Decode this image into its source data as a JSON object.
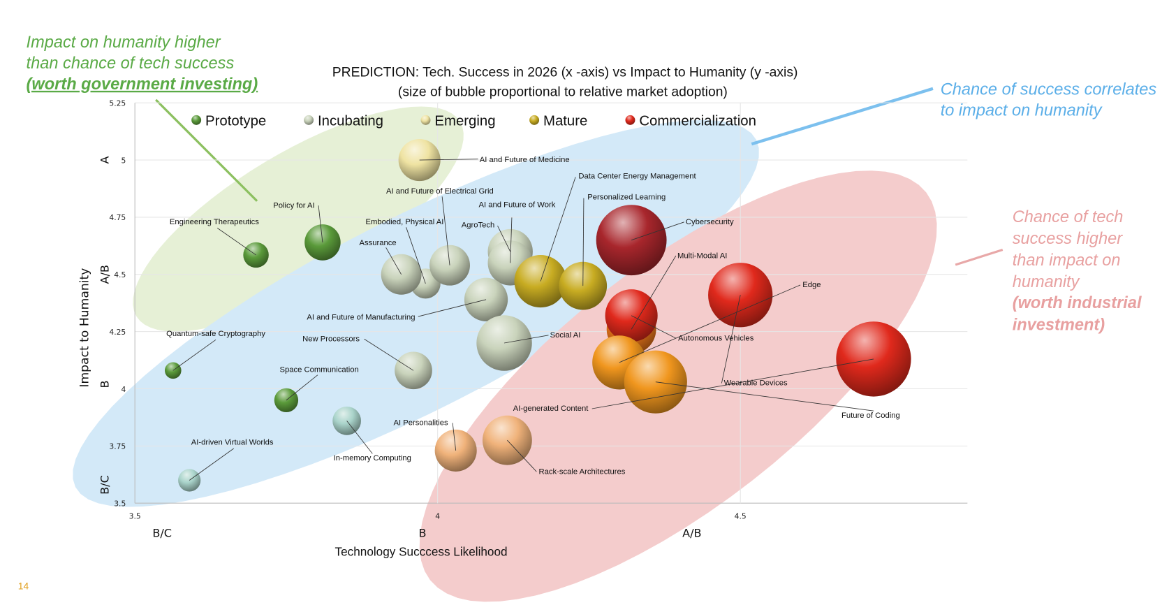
{
  "page_number": "14",
  "annotations": {
    "government": [
      "Impact on humanity higher",
      "than chance of tech success",
      "(worth government investing)"
    ],
    "correlates": [
      "Chance of success correlates",
      "to impact on humanity"
    ],
    "industrial": [
      "Chance of tech",
      "success higher",
      "than impact on",
      "humanity",
      "(worth industrial",
      "investment)"
    ]
  },
  "colors": {
    "government": "#5aaa46",
    "correlates": "#5aaee8",
    "industrial": "#e8a0a0",
    "ellipse_green": "#e6f0d6",
    "ellipse_blue": "#d3e9f8",
    "ellipse_pink": "#f4cccc"
  },
  "chart_data": {
    "type": "bubble",
    "title": "PREDICTION: Tech. Success in 2026 (x -axis) vs Impact to Humanity (y -axis)",
    "subtitle": "(size of bubble proportional to relative market adoption)",
    "xlabel": "Technology  Succcess Likelihood",
    "ylabel": "Impact to Humanity",
    "xlim": [
      3.5,
      4.875
    ],
    "ylim": [
      3.5,
      5.25
    ],
    "x_ticks": [
      "3.5",
      "4",
      "4.5"
    ],
    "y_ticks": [
      "3.5",
      "3.75",
      "4",
      "4.25",
      "4.5",
      "4.75",
      "5",
      "5.25"
    ],
    "x_grades": [
      "B/C",
      "B",
      "A/B"
    ],
    "y_grades": [
      "B/C",
      "B",
      "A/B",
      "A"
    ],
    "grid": true,
    "legend_position": "top",
    "legend": [
      {
        "name": "Prototype",
        "color": "#5a9a3a"
      },
      {
        "name": "Incubating",
        "color": "#c9d3bb"
      },
      {
        "name": "Emerging",
        "color": "#efe3a2"
      },
      {
        "name": "Mature",
        "color": "#c8ac22"
      },
      {
        "name": "Commercialization",
        "color": "#e0291c"
      }
    ],
    "points": [
      {
        "name": "AI and Future of Medicine",
        "x": 3.97,
        "y": 5.0,
        "size": 28,
        "color": "#efe3a2"
      },
      {
        "name": "Policy for AI",
        "x": 3.81,
        "y": 4.64,
        "size": 24,
        "color": "#5a9a3a"
      },
      {
        "name": "Engineering Therapeutics",
        "x": 3.7,
        "y": 4.585,
        "size": 17,
        "color": "#5a9a3a"
      },
      {
        "name": "Embodied, Physical AI",
        "x": 3.98,
        "y": 4.46,
        "size": 20,
        "color": "#c9d3bb"
      },
      {
        "name": "Assurance",
        "x": 3.94,
        "y": 4.5,
        "size": 27,
        "color": "#c9d3bb"
      },
      {
        "name": "AI and Future of Electrical  Grid",
        "x": 4.02,
        "y": 4.54,
        "size": 27,
        "color": "#c9d3bb"
      },
      {
        "name": "AgroTech",
        "x": 4.12,
        "y": 4.6,
        "size": 30,
        "color": "#c9d3bb"
      },
      {
        "name": "AI and Future of Work",
        "x": 4.12,
        "y": 4.55,
        "size": 30,
        "color": "#c9d3bb"
      },
      {
        "name": "Data Center Energy Management",
        "x": 4.17,
        "y": 4.47,
        "size": 35,
        "color": "#c8ac22"
      },
      {
        "name": "Personalized Learning",
        "x": 4.24,
        "y": 4.45,
        "size": 32,
        "color": "#c8ac22"
      },
      {
        "name": "Cybersecurity",
        "x": 4.32,
        "y": 4.65,
        "size": 47,
        "color": "#a8262c"
      },
      {
        "name": "AI and Future of Manufacturing",
        "x": 4.08,
        "y": 4.39,
        "size": 29,
        "color": "#c9d3bb"
      },
      {
        "name": "Social AI",
        "x": 4.11,
        "y": 4.2,
        "size": 37,
        "color": "#c9d3bb"
      },
      {
        "name": "Multi-Modal AI",
        "x": 4.32,
        "y": 4.26,
        "size": 33,
        "color": "#e8741a"
      },
      {
        "name": "Autonomous Vehicles",
        "x": 4.32,
        "y": 4.32,
        "size": 35,
        "color": "#e0291c"
      },
      {
        "name": "Edge",
        "x": 4.3,
        "y": 4.115,
        "size": 36,
        "color": "#f0961e"
      },
      {
        "name": "Future of Coding",
        "x": 4.36,
        "y": 4.03,
        "size": 42,
        "color": "#f0961e"
      },
      {
        "name": "Wearable Devices",
        "x": 4.5,
        "y": 4.41,
        "size": 43,
        "color": "#e0291c"
      },
      {
        "name": "AI-generated Content",
        "x": 4.72,
        "y": 4.13,
        "size": 50,
        "color": "#e0291c"
      },
      {
        "name": "Quantum-safe Cryptography",
        "x": 3.563,
        "y": 4.08,
        "size": 11,
        "color": "#5a9a3a"
      },
      {
        "name": "Space Communication",
        "x": 3.75,
        "y": 3.95,
        "size": 16,
        "color": "#5a9a3a"
      },
      {
        "name": "New Processors",
        "x": 3.96,
        "y": 4.08,
        "size": 25,
        "color": "#c9d3bb"
      },
      {
        "name": "In-memory Computing",
        "x": 3.85,
        "y": 3.86,
        "size": 19,
        "color": "#a9d3ca"
      },
      {
        "name": "AI-driven Virtual Worlds",
        "x": 3.59,
        "y": 3.6,
        "size": 15,
        "color": "#a9d3ca"
      },
      {
        "name": "AI Personalities",
        "x": 4.03,
        "y": 3.73,
        "size": 28,
        "color": "#f0b27a"
      },
      {
        "name": "Rack-scale Architectures",
        "x": 4.115,
        "y": 3.775,
        "size": 33,
        "color": "#f0b27a"
      }
    ]
  }
}
